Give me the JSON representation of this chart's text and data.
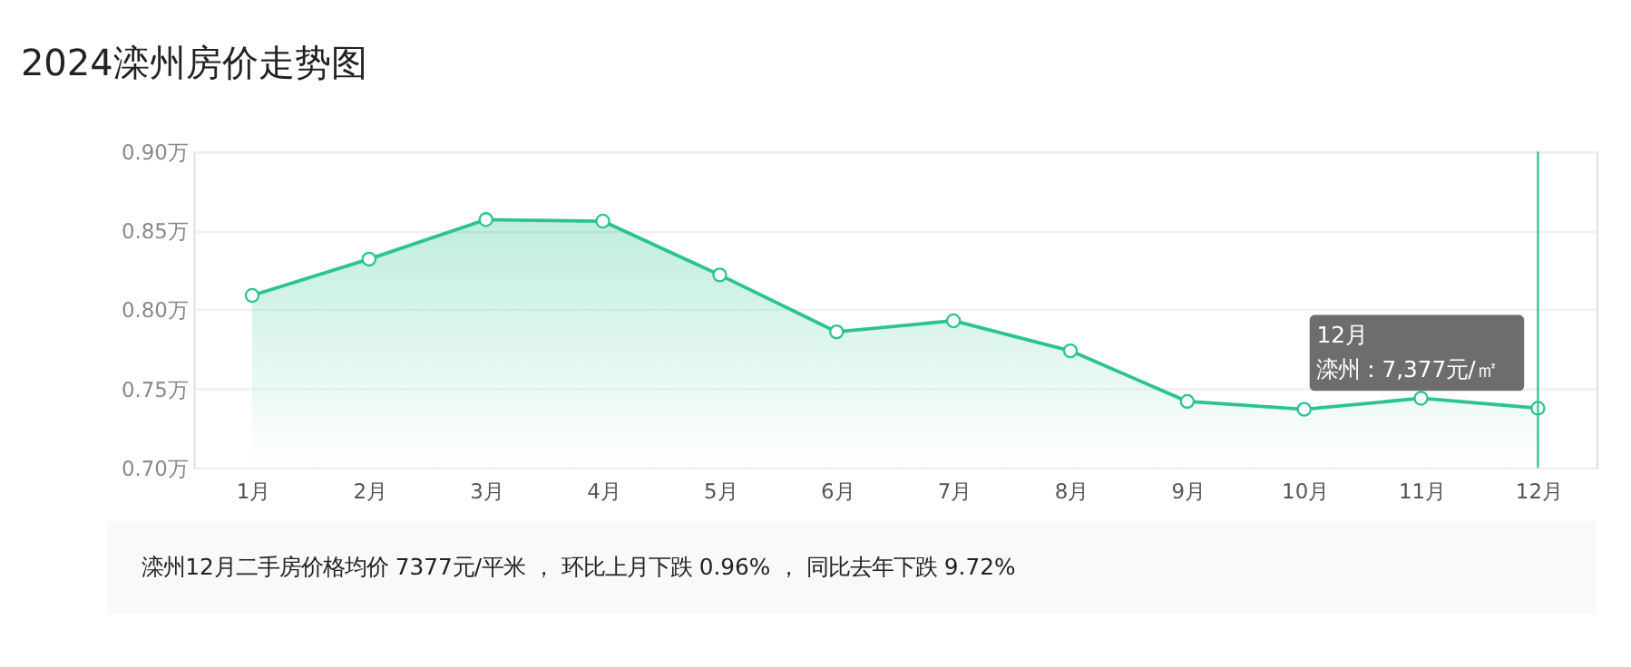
{
  "chart_data": {
    "type": "area",
    "title": "2024滦州房价走势图",
    "categories": [
      "1月",
      "2月",
      "3月",
      "4月",
      "5月",
      "6月",
      "7月",
      "8月",
      "9月",
      "10月",
      "11月",
      "12月"
    ],
    "series": [
      {
        "color": "#2bc48f",
        "values": [
          0.809,
          0.832,
          0.857,
          0.856,
          0.822,
          0.786,
          0.793,
          0.774,
          0.742,
          0.737,
          0.744,
          0.7377
        ]
      }
    ],
    "ylim": [
      0.7,
      0.9
    ],
    "yticks": [
      {
        "value": 0.7,
        "label": "0.70万"
      },
      {
        "value": 0.75,
        "label": "0.75万"
      },
      {
        "value": 0.8,
        "label": "0.80万"
      },
      {
        "value": 0.85,
        "label": "0.85万"
      },
      {
        "value": 0.9,
        "label": "0.90万"
      }
    ],
    "grid": "y",
    "marker": "circle",
    "line_style": "solid",
    "ref_lines": [
      {
        "axis": "x",
        "value": "12月",
        "color": "#2bc48f"
      }
    ],
    "annotations": [
      "12月",
      {
        "text": "滦州：7,377元/㎡",
        "x": "12月",
        "y": 0.7377
      },
      "滦州12月二手房价格均价 7377元/平米 ， 环比上月下跌 0.96% ， 同比去年下跌 9.72%"
    ]
  }
}
